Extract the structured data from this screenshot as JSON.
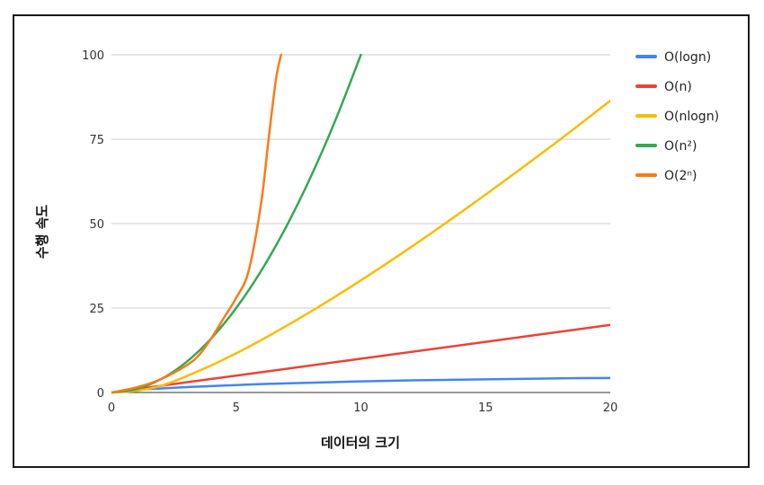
{
  "chart_data": {
    "type": "line",
    "title": "",
    "xlabel": "데이터의 크기",
    "ylabel": "수행 속도",
    "xlim": [
      0,
      20
    ],
    "ylim": [
      0,
      100
    ],
    "xticks": [
      "0",
      "5",
      "10",
      "15",
      "20"
    ],
    "yticks": [
      "0",
      "25",
      "50",
      "75",
      "100"
    ],
    "grid": true,
    "legend_position": "right",
    "series": [
      {
        "name": "O(logn)",
        "color": "#4285f4",
        "x": [
          0,
          1,
          2,
          3,
          4,
          5,
          6,
          8,
          10,
          12,
          14,
          16,
          18,
          20
        ],
        "y": [
          0,
          0.8,
          1.2,
          1.6,
          1.9,
          2.2,
          2.5,
          2.9,
          3.3,
          3.6,
          3.8,
          4.0,
          4.2,
          4.3
        ]
      },
      {
        "name": "O(n)",
        "color": "#ea4335",
        "x": [
          0,
          5,
          10,
          15,
          20
        ],
        "y": [
          0,
          5,
          10,
          15,
          20
        ]
      },
      {
        "name": "O(nlogn)",
        "color": "#fbbc04",
        "x": [
          0,
          1,
          2,
          3,
          4,
          5,
          6,
          8,
          10,
          12,
          14,
          16,
          18,
          20
        ],
        "y": [
          0,
          0.5,
          2,
          4.8,
          8,
          11.6,
          15.5,
          24,
          33.2,
          43,
          53.3,
          64,
          75,
          86.4
        ]
      },
      {
        "name": "O(n²)",
        "color": "#34a853",
        "x": [
          0,
          1,
          2,
          3,
          4,
          5,
          6,
          7,
          8,
          9,
          10
        ],
        "y": [
          0,
          1,
          4,
          9,
          16,
          25,
          36,
          49,
          64,
          81,
          100
        ]
      },
      {
        "name": "O(2ⁿ)",
        "color": "#fa7b17",
        "x": [
          0,
          1,
          2,
          3,
          3.5,
          4,
          4.5,
          5,
          5.5,
          6,
          6.3,
          6.6,
          6.8
        ],
        "y": [
          0,
          1.5,
          4,
          8,
          11,
          16,
          22,
          28,
          36,
          56,
          75,
          93,
          100
        ]
      }
    ]
  }
}
